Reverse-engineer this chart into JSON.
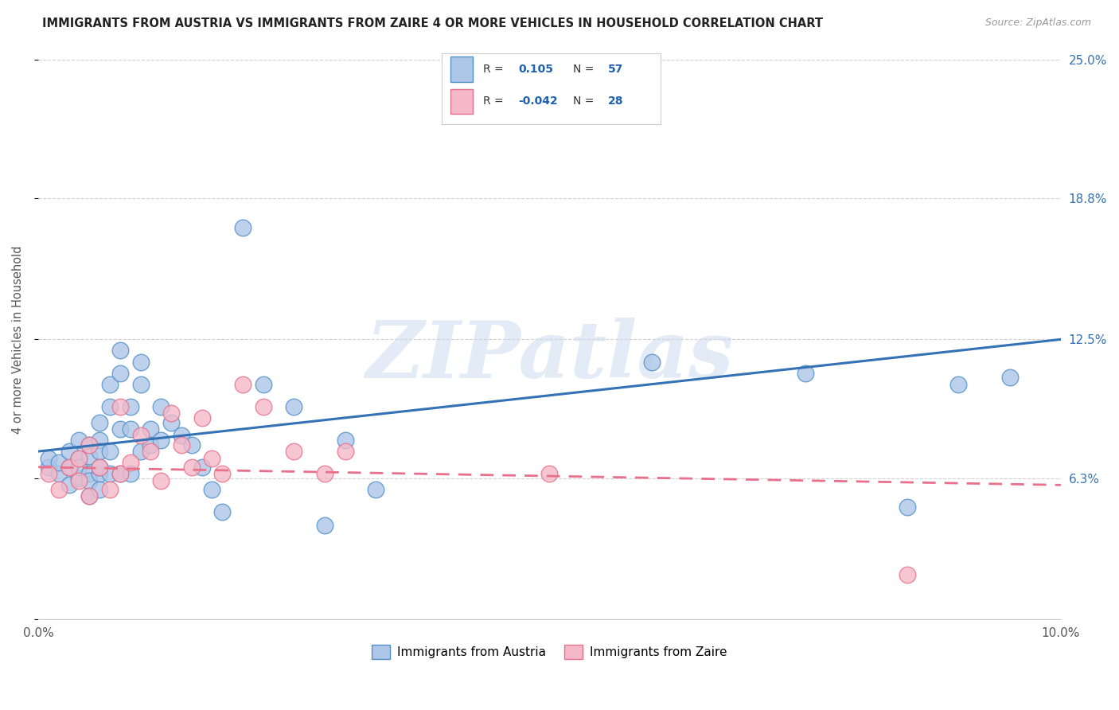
{
  "title": "IMMIGRANTS FROM AUSTRIA VS IMMIGRANTS FROM ZAIRE 4 OR MORE VEHICLES IN HOUSEHOLD CORRELATION CHART",
  "source": "Source: ZipAtlas.com",
  "ylabel": "4 or more Vehicles in Household",
  "x_min": 0.0,
  "x_max": 0.1,
  "y_min": 0.0,
  "y_max": 0.25,
  "austria_color": "#aec6e8",
  "zaire_color": "#f4b8c8",
  "austria_line_color": "#3472b5",
  "zaire_line_color": "#e8708a",
  "austria_edge_color": "#5090c8",
  "zaire_edge_color": "#e8708a",
  "watermark": "ZIPatlas",
  "austria_R": "0.105",
  "austria_N": "57",
  "zaire_R": "-0.042",
  "zaire_N": "28",
  "austria_scatter_x": [
    0.001,
    0.001,
    0.002,
    0.002,
    0.003,
    0.003,
    0.003,
    0.004,
    0.004,
    0.004,
    0.004,
    0.005,
    0.005,
    0.005,
    0.005,
    0.005,
    0.006,
    0.006,
    0.006,
    0.006,
    0.006,
    0.006,
    0.007,
    0.007,
    0.007,
    0.007,
    0.008,
    0.008,
    0.008,
    0.008,
    0.009,
    0.009,
    0.009,
    0.01,
    0.01,
    0.01,
    0.011,
    0.011,
    0.012,
    0.012,
    0.013,
    0.014,
    0.015,
    0.016,
    0.017,
    0.018,
    0.02,
    0.022,
    0.025,
    0.028,
    0.03,
    0.033,
    0.06,
    0.075,
    0.085,
    0.09,
    0.095
  ],
  "austria_scatter_y": [
    0.068,
    0.072,
    0.065,
    0.07,
    0.06,
    0.068,
    0.075,
    0.063,
    0.072,
    0.08,
    0.068,
    0.078,
    0.065,
    0.055,
    0.062,
    0.073,
    0.08,
    0.088,
    0.075,
    0.065,
    0.058,
    0.068,
    0.095,
    0.105,
    0.075,
    0.065,
    0.12,
    0.11,
    0.085,
    0.065,
    0.095,
    0.085,
    0.065,
    0.115,
    0.105,
    0.075,
    0.085,
    0.078,
    0.095,
    0.08,
    0.088,
    0.082,
    0.078,
    0.068,
    0.058,
    0.048,
    0.175,
    0.105,
    0.095,
    0.042,
    0.08,
    0.058,
    0.115,
    0.11,
    0.05,
    0.105,
    0.108
  ],
  "zaire_scatter_x": [
    0.001,
    0.002,
    0.003,
    0.004,
    0.004,
    0.005,
    0.005,
    0.006,
    0.007,
    0.008,
    0.008,
    0.009,
    0.01,
    0.011,
    0.012,
    0.013,
    0.014,
    0.015,
    0.016,
    0.017,
    0.018,
    0.02,
    0.022,
    0.025,
    0.028,
    0.03,
    0.05,
    0.085
  ],
  "zaire_scatter_y": [
    0.065,
    0.058,
    0.068,
    0.062,
    0.072,
    0.055,
    0.078,
    0.068,
    0.058,
    0.095,
    0.065,
    0.07,
    0.082,
    0.075,
    0.062,
    0.092,
    0.078,
    0.068,
    0.09,
    0.072,
    0.065,
    0.105,
    0.095,
    0.075,
    0.065,
    0.075,
    0.065,
    0.02
  ],
  "austria_trend_x": [
    0.0,
    0.1
  ],
  "austria_trend_y": [
    0.075,
    0.125
  ],
  "zaire_trend_x": [
    0.0,
    0.1
  ],
  "zaire_trend_y": [
    0.068,
    0.06
  ]
}
